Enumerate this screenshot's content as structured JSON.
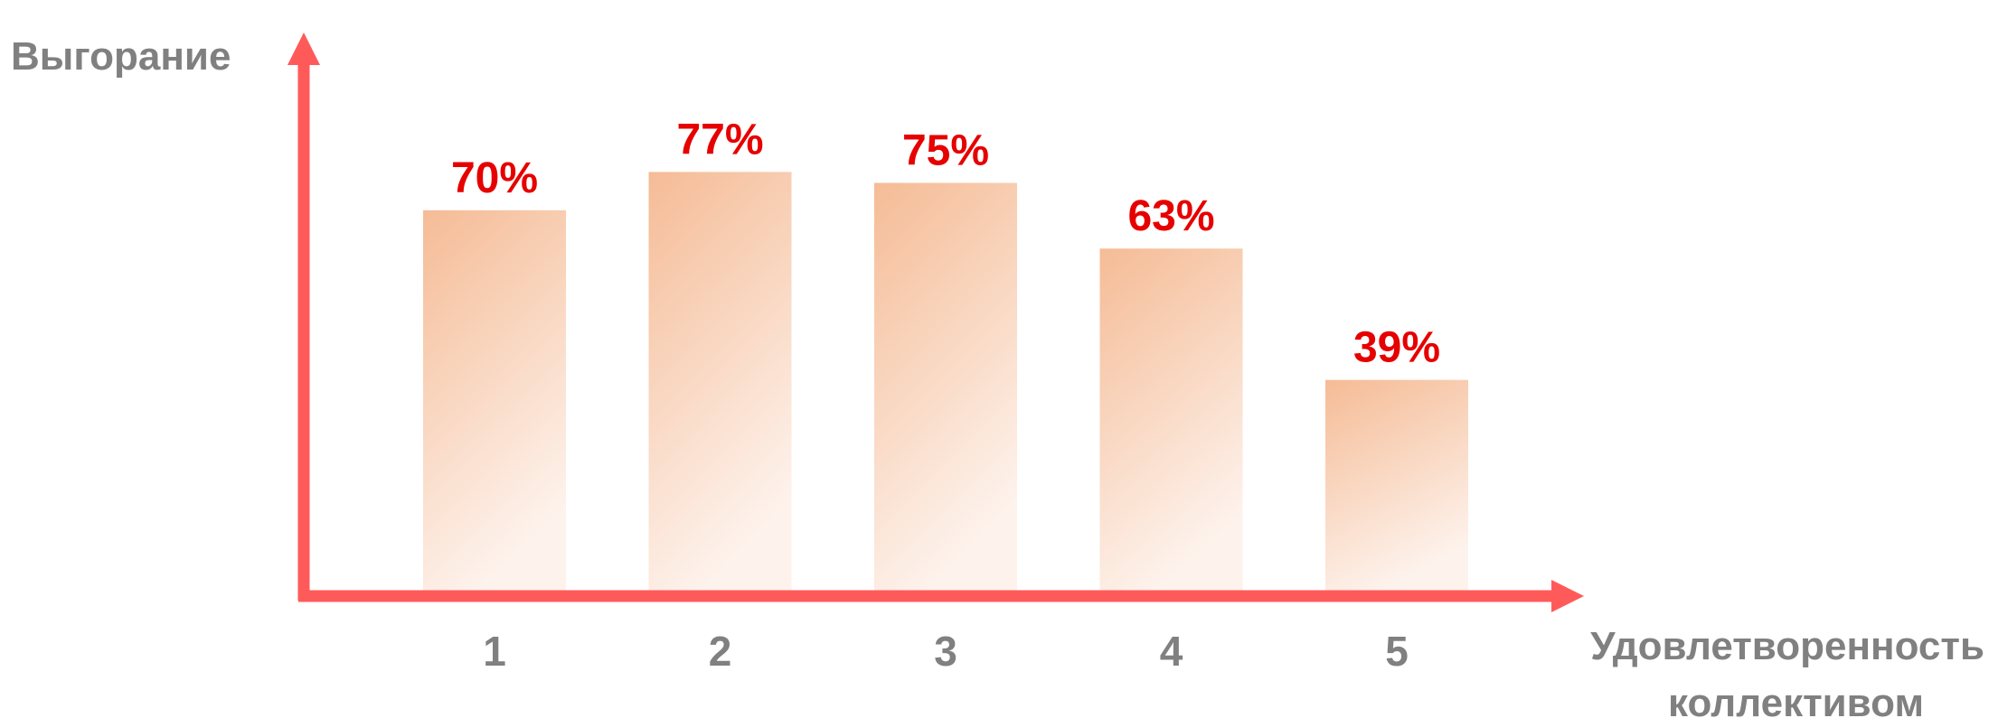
{
  "chart_data": {
    "type": "bar",
    "categories": [
      "1",
      "2",
      "3",
      "4",
      "5"
    ],
    "values": [
      70,
      77,
      75,
      63,
      39
    ],
    "value_labels": [
      "70%",
      "77%",
      "75%",
      "63%",
      "39%"
    ],
    "ylabel": "Выгорание",
    "xlabel_lines": [
      "Удовлетворенность",
      "коллективом"
    ],
    "ylim": [
      0,
      100
    ],
    "grid": false,
    "colors": {
      "axis": "#ff5a5a",
      "bar_top": "#f4b48a",
      "bar_bottom": "#fdf1ea",
      "value_label": "#e60000",
      "text": "#808080"
    }
  }
}
